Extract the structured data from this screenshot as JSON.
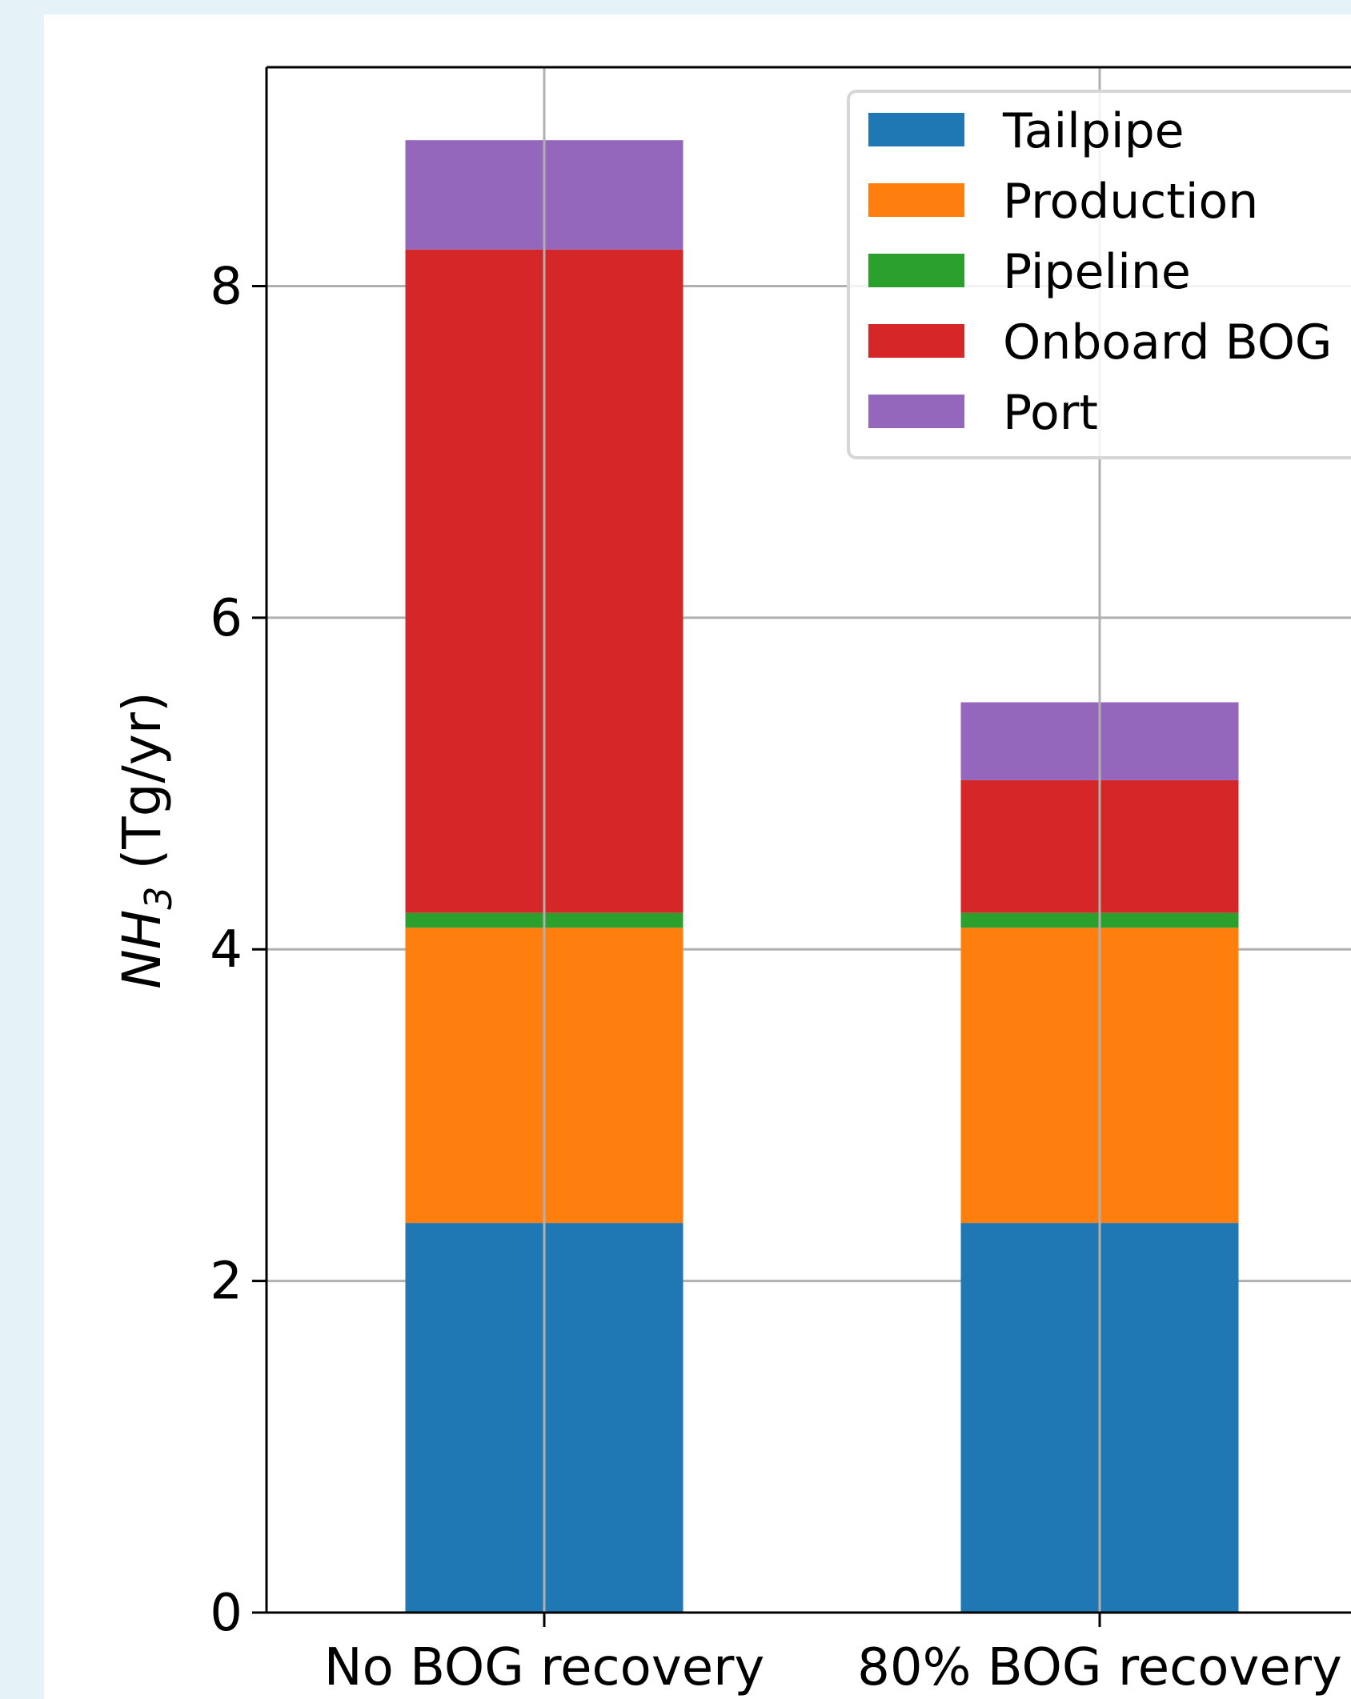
{
  "chart_data": {
    "type": "bar",
    "stacked": true,
    "categories": [
      "No BOG recovery",
      "80% BOG recovery"
    ],
    "series": [
      {
        "name": "Tailpipe",
        "color": "#1f77b4",
        "values": [
          2.35,
          2.35
        ]
      },
      {
        "name": "Production",
        "color": "#ff7f0e",
        "values": [
          1.78,
          1.78
        ]
      },
      {
        "name": "Pipeline",
        "color": "#2ca02c",
        "values": [
          0.09,
          0.09
        ]
      },
      {
        "name": "Onboard BOG",
        "color": "#d62728",
        "values": [
          4.0,
          0.8
        ]
      },
      {
        "name": "Port",
        "color": "#9467bd",
        "values": [
          0.66,
          0.47
        ]
      }
    ],
    "ylabel_base": "NH",
    "ylabel_sub": "3",
    "ylabel_unit": " (Tg/yr)",
    "yticks": [
      "0",
      "2",
      "4",
      "6",
      "8"
    ],
    "ylim": [
      0,
      9.32
    ],
    "grid": true,
    "legend_position": "top-right"
  }
}
